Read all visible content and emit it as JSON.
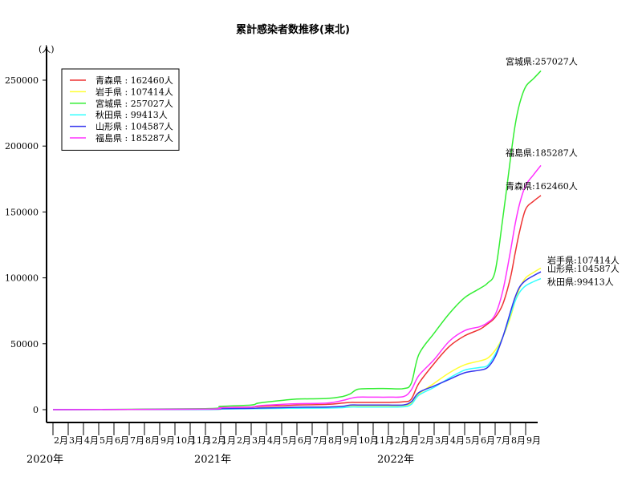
{
  "chart_data": {
    "type": "line",
    "title": "累計感染者数推移(東北)",
    "ylabel": "(人)",
    "ylim": [
      0,
      265000
    ],
    "yticks": [
      0,
      50000,
      100000,
      150000,
      200000,
      250000
    ],
    "grid": false,
    "legend_position": "top-left",
    "x_months": [
      "2月",
      "3月",
      "4月",
      "5月",
      "6月",
      "7月",
      "8月",
      "9月",
      "10月",
      "11月",
      "12月",
      "1月",
      "2月",
      "3月",
      "4月",
      "5月",
      "6月",
      "7月",
      "8月",
      "9月",
      "10月",
      "11月",
      "12月",
      "1月",
      "2月",
      "3月",
      "4月",
      "5月",
      "6月",
      "7月",
      "8月",
      "9月"
    ],
    "years": [
      {
        "label": "2020年",
        "month_index": 0
      },
      {
        "label": "2021年",
        "month_index": 11
      },
      {
        "label": "2022年",
        "month_index": 23
      }
    ],
    "x": [
      0,
      10,
      11,
      13,
      13.5,
      15,
      16,
      18,
      19,
      19.5,
      20,
      21,
      22,
      23,
      23.5,
      24,
      25,
      26,
      27,
      28,
      28.5,
      29,
      29.5,
      30,
      30.3,
      30.6,
      31,
      31.5,
      32
    ],
    "series": [
      {
        "name": "青森県",
        "total_label": "青森県 : 162460人",
        "end_label": "青森県:162460人",
        "color": "#ee3333",
        "values": [
          0,
          500,
          1500,
          2000,
          2500,
          3000,
          3500,
          4000,
          5000,
          5500,
          5500,
          5500,
          5500,
          6000,
          8000,
          20000,
          35000,
          48000,
          56000,
          61000,
          65000,
          70000,
          80000,
          100000,
          118000,
          135000,
          152000,
          158000,
          162460
        ]
      },
      {
        "name": "岩手県",
        "total_label": "岩手県 : 107414人",
        "end_label": "岩手県:107414人",
        "color": "#ffff33",
        "values": [
          0,
          200,
          600,
          900,
          1200,
          1500,
          1700,
          2000,
          2500,
          3000,
          3000,
          3000,
          3000,
          3200,
          5000,
          12000,
          20000,
          28000,
          34000,
          37000,
          39000,
          45000,
          55000,
          70000,
          82000,
          92000,
          100000,
          104000,
          107414
        ]
      },
      {
        "name": "宮城県",
        "total_label": "宮城県 : 257027人",
        "end_label": "宮城県:257027人",
        "color": "#33ee33",
        "values": [
          0,
          800,
          2500,
          3500,
          5000,
          7000,
          8000,
          8500,
          10000,
          12000,
          15500,
          16000,
          16000,
          16000,
          20000,
          42000,
          58000,
          73000,
          85000,
          92000,
          96000,
          105000,
          145000,
          190000,
          215000,
          232000,
          245000,
          251000,
          257027
        ]
      },
      {
        "name": "秋田県",
        "total_label": "秋田県 : 99413人",
        "end_label": "秋田県:99413人",
        "color": "#33ffff",
        "values": [
          0,
          200,
          500,
          700,
          800,
          1000,
          1100,
          1200,
          1500,
          2000,
          2000,
          2000,
          2000,
          2200,
          4000,
          11000,
          17000,
          24000,
          30000,
          32000,
          33500,
          42000,
          55000,
          72000,
          82000,
          89000,
          94000,
          97000,
          99413
        ]
      },
      {
        "name": "山形県",
        "total_label": "山形県 : 104587人",
        "end_label": "山形県:104587人",
        "color": "#3333ee",
        "values": [
          0,
          300,
          800,
          1000,
          1200,
          1500,
          1800,
          2000,
          2500,
          3500,
          3500,
          3500,
          3500,
          3600,
          6000,
          13000,
          18000,
          23000,
          28000,
          30000,
          32000,
          40000,
          55000,
          74000,
          85000,
          93000,
          98000,
          101500,
          104587
        ]
      },
      {
        "name": "福島県",
        "total_label": "福島県 : 185287人",
        "end_label": "福島県:185287人",
        "color": "#ff33ff",
        "values": [
          0,
          500,
          1500,
          2000,
          3000,
          4000,
          4500,
          5000,
          7000,
          8500,
          9500,
          9500,
          9500,
          10000,
          15000,
          26000,
          38000,
          52000,
          60000,
          63000,
          66000,
          72000,
          90000,
          120000,
          140000,
          156000,
          170000,
          178000,
          185287
        ]
      }
    ]
  }
}
